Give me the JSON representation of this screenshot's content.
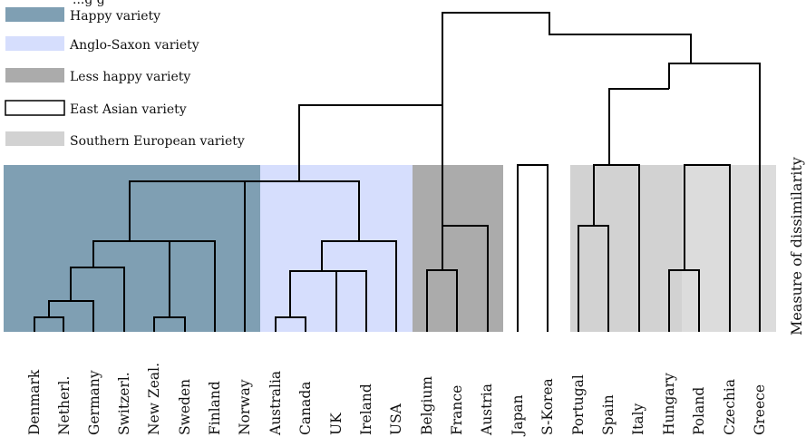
{
  "legend": {
    "partial_title": "...g g",
    "items": [
      {
        "label": "Happy variety",
        "color": "#7f9fb3",
        "outline": false
      },
      {
        "label": "Anglo-Saxon variety",
        "color": "#d6defd",
        "outline": false
      },
      {
        "label": "Less happy variety",
        "color": "#ababab",
        "outline": false
      },
      {
        "label": "East Asian variety",
        "color": "#ffffff",
        "outline": true
      },
      {
        "label": "Southern European variety",
        "color": "#d2d2d2",
        "outline": false
      }
    ]
  },
  "y_axis_label": "Measure of dissimilarity",
  "groups": [
    {
      "label": "Happy variety",
      "color": "#7f9fb3"
    },
    {
      "label": "Anglo-Saxon variety",
      "color": "#d6defd"
    },
    {
      "label": "Less happy variety",
      "color": "#ababab"
    },
    {
      "label": "Southern European variety",
      "color": "#d2d2d2"
    },
    {
      "label": "Southern European variety",
      "color": "#dcdcdc"
    }
  ],
  "countries": [
    "Denmark",
    "Netherl.",
    "Germany",
    "Switzerl.",
    "New Zeal.",
    "Sweden",
    "Finland",
    "Norway",
    "Australia",
    "Canada",
    "UK",
    "Ireland",
    "USA",
    "Belgium",
    "France",
    "Austria",
    "Japan",
    "S-Korea",
    "Portugal",
    "Spain",
    "Italy",
    "Hungary",
    "Poland",
    "Czechia",
    "Greece"
  ]
}
